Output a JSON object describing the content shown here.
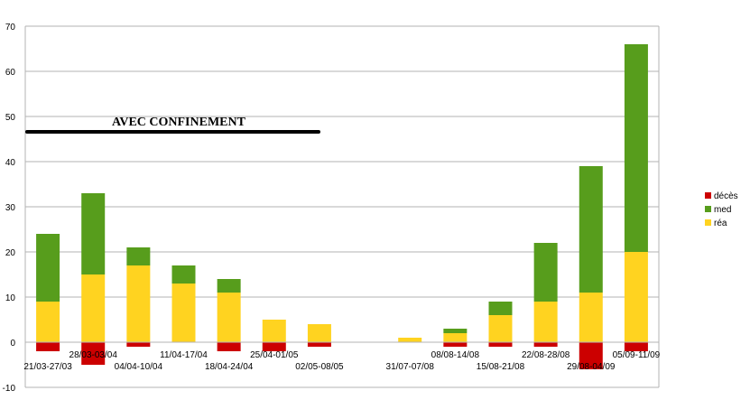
{
  "chart_data": {
    "type": "bar",
    "stacked": true,
    "categories": [
      "21/03-27/03",
      "28/03-03/04",
      "04/04-10/04",
      "11/04-17/04",
      "18/04-24/04",
      "25/04-01/05",
      "02/05-08/05",
      "",
      "31/07-07/08",
      "08/08-14/08",
      "15/08-21/08",
      "22/08-28/08",
      "29/08-04/09",
      "05/09-11/09"
    ],
    "series": [
      {
        "name": "décès",
        "color": "#cc0000",
        "values": [
          -2,
          -5,
          -1,
          0,
          -2,
          -2,
          -1,
          0,
          0,
          -1,
          -1,
          -1,
          -6,
          -2
        ]
      },
      {
        "name": "med",
        "color": "#579d1c",
        "values": [
          15,
          18,
          4,
          4,
          3,
          0,
          0,
          0,
          0,
          1,
          3,
          13,
          28,
          46
        ]
      },
      {
        "name": "réa",
        "color": "#ffd320",
        "values": [
          9,
          15,
          17,
          13,
          11,
          5,
          4,
          0,
          1,
          2,
          6,
          9,
          11,
          20
        ]
      }
    ],
    "ylim": [
      -10,
      70
    ],
    "yticks": [
      -10,
      0,
      10,
      20,
      30,
      40,
      50,
      60,
      70
    ],
    "grid": true,
    "legend": "right",
    "annotation": "AVEC CONFINEMENT"
  }
}
